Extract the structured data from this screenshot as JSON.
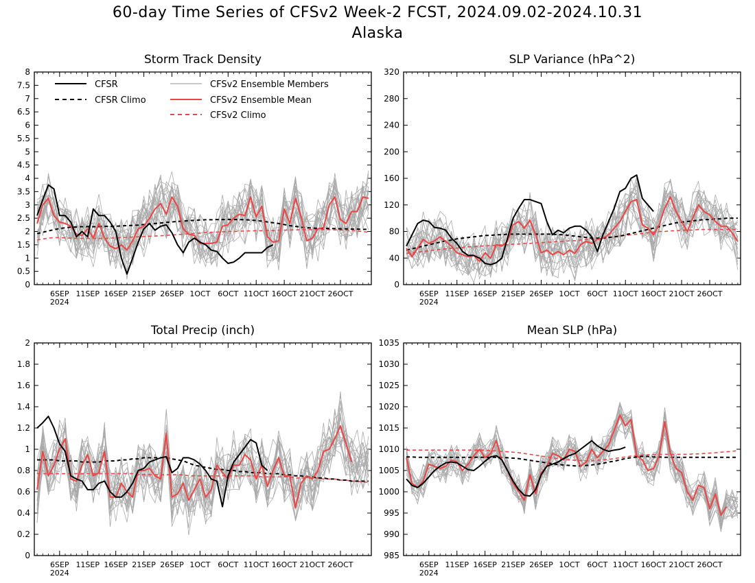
{
  "title": {
    "line1": "60-day Time Series of CFSv2 Week-2 FCST, 2024.09.02-2024.10.31",
    "line2": "Alaska"
  },
  "colors": {
    "cfsr": "#000000",
    "cfsr_climo": "#000000",
    "members": "#a9a9a9",
    "ens_mean": "#ee4444",
    "cfsv2_climo": "#ee4444"
  },
  "legend": {
    "cfsr": "CFSR",
    "cfsr_climo": "CFSR Climo",
    "members": "CFSv2 Ensemble Members",
    "ens_mean": "CFSv2 Ensemble Mean",
    "cfsv2_climo": "CFSv2 Climo"
  },
  "x_ticks": {
    "labels": [
      "6SEP",
      "11SEP",
      "16SEP",
      "21SEP",
      "26SEP",
      "1OCT",
      "6OCT",
      "11OCT",
      "16OCT",
      "21OCT",
      "26OCT"
    ],
    "day_index": [
      4,
      9,
      14,
      19,
      24,
      29,
      34,
      39,
      44,
      49,
      54
    ],
    "year_label": "2024"
  },
  "chart_data": [
    {
      "type": "line",
      "title": "Storm Track Density",
      "x_days": 60,
      "ylim": [
        0,
        8
      ],
      "yticks": [
        "0",
        "0.5",
        "1",
        "1.5",
        "2",
        "2.5",
        "3",
        "3.5",
        "4",
        "4.5",
        "5",
        "5.5",
        "6",
        "6.5",
        "7",
        "7.5",
        "8"
      ],
      "has_legend": true,
      "series": [
        {
          "key": "cfsr",
          "values": [
            2.6,
            3.2,
            3.75,
            3.6,
            2.6,
            2.6,
            2.35,
            1.8,
            2.0,
            1.8,
            2.85,
            2.6,
            2.6,
            2.35,
            2.0,
            1.0,
            0.4,
            1.0,
            1.6,
            2.1,
            2.3,
            2.05,
            2.2,
            2.25,
            1.95,
            1.5,
            1.2,
            1.6,
            1.75,
            1.6,
            1.5,
            1.3,
            1.25,
            1.0,
            0.8,
            0.85,
            1.0,
            1.2,
            1.2,
            1.2,
            1.2,
            1.4,
            1.5
          ]
        },
        {
          "key": "cfsr_climo",
          "values": [
            1.92,
            1.97,
            2.02,
            2.07,
            2.11,
            2.14,
            2.16,
            2.17,
            2.18,
            2.18,
            2.18,
            2.18,
            2.19,
            2.19,
            2.2,
            2.21,
            2.22,
            2.23,
            2.24,
            2.26,
            2.28,
            2.3,
            2.32,
            2.34,
            2.36,
            2.38,
            2.39,
            2.41,
            2.42,
            2.43,
            2.44,
            2.44,
            2.45,
            2.45,
            2.45,
            2.45,
            2.45,
            2.44,
            2.43,
            2.41,
            2.39,
            2.36,
            2.33,
            2.3,
            2.26,
            2.22,
            2.19,
            2.16,
            2.14,
            2.13,
            2.12,
            2.12,
            2.11,
            2.11,
            2.1,
            2.1,
            2.09,
            2.09,
            2.08,
            2.08
          ]
        },
        {
          "key": "cfsv2_climo",
          "values": [
            1.68,
            1.72,
            1.75,
            1.77,
            1.77,
            1.76,
            1.75,
            1.74,
            1.74,
            1.74,
            1.74,
            1.74,
            1.74,
            1.75,
            1.76,
            1.77,
            1.78,
            1.79,
            1.8,
            1.81,
            1.82,
            1.83,
            1.84,
            1.85,
            1.87,
            1.88,
            1.9,
            1.91,
            1.93,
            1.94,
            1.96,
            1.97,
            1.98,
            1.99,
            2.0,
            2.0,
            2.01,
            2.02,
            2.02,
            2.03,
            2.03,
            2.04,
            2.04,
            2.05,
            2.05,
            2.06,
            2.06,
            2.07,
            2.07,
            2.07,
            2.07,
            2.07,
            2.07,
            2.06,
            2.06,
            2.05,
            2.04,
            2.02,
            2.0,
            1.97
          ]
        },
        {
          "key": "ens_mean",
          "values": [
            2.3,
            3.0,
            3.25,
            2.6,
            2.35,
            2.3,
            2.2,
            1.9,
            1.85,
            2.1,
            1.75,
            2.3,
            1.75,
            1.45,
            1.35,
            1.5,
            1.3,
            1.65,
            2.1,
            2.2,
            2.5,
            2.85,
            3.05,
            2.65,
            3.3,
            2.95,
            2.1,
            1.9,
            1.85,
            1.55,
            1.55,
            1.55,
            1.6,
            2.2,
            2.25,
            2.5,
            2.65,
            2.6,
            3.3,
            2.55,
            2.95,
            1.8,
            1.6,
            1.65,
            2.85,
            2.3,
            3.25,
            2.55,
            1.65,
            1.75,
            2.1,
            2.15,
            3.0,
            3.3,
            2.45,
            2.3,
            2.75,
            2.75,
            3.3,
            3.25
          ]
        }
      ],
      "members": {
        "count": 20,
        "spread": 0.9
      }
    },
    {
      "type": "line",
      "title": "SLP Variance (hPa^2)",
      "x_days": 60,
      "ylim": [
        0,
        320
      ],
      "yticks": [
        "0",
        "40",
        "80",
        "120",
        "160",
        "200",
        "240",
        "280",
        "320"
      ],
      "has_legend": false,
      "series": [
        {
          "key": "cfsr",
          "values": [
            58,
            75,
            92,
            97,
            95,
            86,
            85,
            82,
            70,
            62,
            50,
            44,
            44,
            40,
            32,
            30,
            33,
            40,
            70,
            100,
            115,
            128,
            128,
            125,
            122,
            95,
            75,
            82,
            78,
            85,
            88,
            88,
            82,
            72,
            50,
            75,
            95,
            115,
            140,
            145,
            160,
            165,
            130,
            120,
            110
          ]
        },
        {
          "key": "cfsr_climo",
          "values": [
            52,
            54,
            56,
            58,
            60,
            62,
            64,
            66,
            67,
            69,
            70,
            71,
            72,
            73,
            74,
            74,
            75,
            75,
            76,
            76,
            76,
            76,
            76,
            76,
            76,
            76,
            76,
            75,
            75,
            74,
            73,
            72,
            71,
            70,
            70,
            70,
            71,
            72,
            73,
            75,
            77,
            79,
            81,
            83,
            85,
            87,
            89,
            91,
            93,
            94,
            95,
            96,
            97,
            98,
            98,
            99,
            99,
            100,
            100,
            100
          ]
        },
        {
          "key": "cfsv2_climo",
          "values": [
            47,
            48,
            49,
            50,
            51,
            52,
            53,
            54,
            55,
            55,
            56,
            57,
            57,
            58,
            58,
            59,
            59,
            60,
            60,
            61,
            61,
            62,
            62,
            63,
            63,
            64,
            64,
            65,
            65,
            66,
            66,
            67,
            68,
            68,
            69,
            70,
            71,
            72,
            73,
            74,
            75,
            76,
            77,
            78,
            79,
            80,
            80,
            81,
            81,
            82,
            82,
            82,
            83,
            83,
            83,
            83,
            83,
            83,
            83,
            83
          ]
        },
        {
          "key": "ens_mean",
          "values": [
            55,
            42,
            55,
            68,
            62,
            66,
            72,
            65,
            58,
            48,
            45,
            42,
            44,
            35,
            48,
            40,
            60,
            58,
            65,
            90,
            95,
            85,
            97,
            75,
            48,
            52,
            45,
            50,
            45,
            52,
            47,
            60,
            65,
            62,
            68,
            70,
            75,
            85,
            95,
            110,
            125,
            128,
            90,
            85,
            75,
            90,
            115,
            132,
            110,
            95,
            80,
            100,
            120,
            110,
            105,
            95,
            88,
            88,
            78,
            65
          ]
        }
      ],
      "members": {
        "count": 20,
        "spread": 32
      }
    },
    {
      "type": "line",
      "title": "Total Precip (inch)",
      "x_days": 60,
      "ylim": [
        0,
        2
      ],
      "yticks": [
        "0",
        "0.2",
        "0.4",
        "0.6",
        "0.8",
        "1",
        "1.2",
        "1.4",
        "1.6",
        "1.8",
        "2"
      ],
      "has_legend": false,
      "series": [
        {
          "key": "cfsr",
          "values": [
            1.2,
            1.25,
            1.31,
            1.2,
            1.05,
            0.98,
            0.75,
            0.72,
            0.7,
            0.62,
            0.62,
            0.68,
            0.7,
            0.6,
            0.55,
            0.55,
            0.6,
            0.68,
            0.8,
            0.82,
            0.88,
            0.9,
            0.92,
            0.93,
            0.78,
            0.82,
            0.92,
            0.92,
            0.9,
            0.86,
            0.8,
            0.72,
            0.7,
            0.46,
            0.75,
            0.88,
            0.95,
            1.02,
            1.09,
            1.06,
            0.85,
            0.8
          ]
        },
        {
          "key": "cfsr_climo",
          "values": [
            0.9,
            0.9,
            0.9,
            0.9,
            0.89,
            0.89,
            0.89,
            0.89,
            0.88,
            0.88,
            0.88,
            0.88,
            0.89,
            0.89,
            0.89,
            0.9,
            0.9,
            0.91,
            0.91,
            0.92,
            0.92,
            0.92,
            0.92,
            0.92,
            0.91,
            0.9,
            0.89,
            0.87,
            0.85,
            0.84,
            0.83,
            0.82,
            0.81,
            0.81,
            0.8,
            0.8,
            0.79,
            0.79,
            0.78,
            0.78,
            0.78,
            0.77,
            0.77,
            0.77,
            0.76,
            0.76,
            0.75,
            0.75,
            0.74,
            0.74,
            0.73,
            0.73,
            0.72,
            0.72,
            0.71,
            0.71,
            0.7,
            0.7,
            0.7,
            0.7
          ]
        },
        {
          "key": "cfsv2_climo",
          "values": [
            0.77,
            0.77,
            0.77,
            0.77,
            0.77,
            0.77,
            0.77,
            0.77,
            0.77,
            0.77,
            0.77,
            0.77,
            0.77,
            0.77,
            0.77,
            0.77,
            0.77,
            0.77,
            0.76,
            0.76,
            0.76,
            0.76,
            0.76,
            0.76,
            0.76,
            0.76,
            0.76,
            0.75,
            0.75,
            0.75,
            0.75,
            0.75,
            0.75,
            0.75,
            0.75,
            0.75,
            0.75,
            0.75,
            0.75,
            0.75,
            0.74,
            0.74,
            0.74,
            0.74,
            0.74,
            0.74,
            0.73,
            0.73,
            0.73,
            0.73,
            0.73,
            0.72,
            0.72,
            0.72,
            0.71,
            0.71,
            0.7,
            0.7,
            0.69,
            0.69
          ]
        },
        {
          "key": "ens_mean",
          "values": [
            0.62,
            0.98,
            0.75,
            0.85,
            1.0,
            1.1,
            0.72,
            0.7,
            0.85,
            0.95,
            0.75,
            0.78,
            0.98,
            0.55,
            0.55,
            0.68,
            0.6,
            0.55,
            0.8,
            0.8,
            0.82,
            0.75,
            0.72,
            1.15,
            0.55,
            0.58,
            0.68,
            0.52,
            0.62,
            0.72,
            0.55,
            0.62,
            0.85,
            0.78,
            0.72,
            0.85,
            0.85,
            0.95,
            0.9,
            0.72,
            0.85,
            0.65,
            0.8,
            0.92,
            0.75,
            0.75,
            0.45,
            0.68,
            0.75,
            0.72,
            0.8,
            0.98,
            1.0,
            1.1,
            1.22,
            1.05,
            0.88
          ]
        }
      ],
      "members": {
        "count": 20,
        "spread": 0.24
      }
    },
    {
      "type": "line",
      "title": "Mean SLP (hPa)",
      "x_days": 60,
      "ylim": [
        985,
        1035
      ],
      "yticks": [
        "985",
        "990",
        "995",
        "1000",
        "1005",
        "1010",
        "1015",
        "1020",
        "1025",
        "1030",
        "1035"
      ],
      "has_legend": false,
      "series": [
        {
          "key": "cfsr",
          "values": [
            1003.0,
            1001.5,
            1001.0,
            1002.0,
            1003.5,
            1005.0,
            1006.0,
            1006.8,
            1007.0,
            1006.8,
            1006.0,
            1005.2,
            1005.0,
            1006.0,
            1007.2,
            1008.2,
            1008.5,
            1007.5,
            1005.0,
            1002.5,
            1000.5,
            999.2,
            999.0,
            1000.5,
            1004.0,
            1006.0,
            1006.5,
            1007.0,
            1007.8,
            1008.5,
            1009.0,
            1010.0,
            1011.0,
            1012.0,
            1010.8,
            1010.0,
            1009.5,
            1009.8,
            1010.0,
            1010.5
          ]
        },
        {
          "key": "cfsr_climo",
          "values": [
            1008.2,
            1008.2,
            1008.1,
            1008.1,
            1008.1,
            1008.1,
            1008.1,
            1008.1,
            1008.1,
            1008.1,
            1008.1,
            1008.1,
            1008.1,
            1008.1,
            1008.1,
            1008.1,
            1008.1,
            1008.1,
            1008.0,
            1007.9,
            1007.8,
            1007.6,
            1007.4,
            1007.2,
            1007.0,
            1006.8,
            1006.6,
            1006.4,
            1006.3,
            1006.2,
            1006.1,
            1006.1,
            1006.2,
            1006.3,
            1006.5,
            1006.7,
            1007.0,
            1007.2,
            1007.5,
            1007.8,
            1008.0,
            1008.2,
            1008.3,
            1008.3,
            1008.2,
            1008.2,
            1008.1,
            1008.1,
            1008.1,
            1008.1,
            1008.1,
            1008.1,
            1008.1,
            1008.1,
            1008.1,
            1008.1,
            1008.1,
            1008.1,
            1008.1,
            1008.1
          ]
        },
        {
          "key": "cfsv2_climo",
          "values": [
            1009.8,
            1009.8,
            1009.8,
            1009.8,
            1009.8,
            1009.8,
            1009.8,
            1009.8,
            1009.8,
            1009.8,
            1009.8,
            1009.8,
            1009.8,
            1009.8,
            1009.8,
            1009.7,
            1009.6,
            1009.5,
            1009.4,
            1009.3,
            1009.2,
            1009.0,
            1008.8,
            1008.6,
            1008.4,
            1008.2,
            1008.0,
            1007.8,
            1007.6,
            1007.5,
            1007.4,
            1007.3,
            1007.3,
            1007.3,
            1007.4,
            1007.5,
            1007.6,
            1007.8,
            1008.0,
            1008.2,
            1008.4,
            1008.5,
            1008.6,
            1008.7,
            1008.7,
            1008.8,
            1008.8,
            1008.8,
            1008.8,
            1008.8,
            1008.8,
            1008.9,
            1008.9,
            1009.0,
            1009.1,
            1009.2,
            1009.3,
            1009.4,
            1009.5,
            1009.7
          ]
        },
        {
          "key": "ens_mean",
          "values": [
            1008.0,
            1002.0,
            1001.0,
            1002.5,
            1006.5,
            1006.0,
            1005.5,
            1006.0,
            1007.5,
            1007.0,
            1005.0,
            1006.5,
            1008.5,
            1010.0,
            1008.0,
            1009.0,
            1012.0,
            1007.5,
            1005.0,
            1002.0,
            1000.0,
            998.0,
            1004.0,
            999.5,
            1004.5,
            1006.0,
            1009.0,
            1008.5,
            1007.5,
            1010.0,
            1009.5,
            1006.0,
            1007.0,
            1010.0,
            1008.0,
            1009.5,
            1011.0,
            1014.5,
            1018.0,
            1015.5,
            1017.0,
            1008.5,
            1007.5,
            1005.0,
            1005.5,
            1008.5,
            1016.5,
            1009.0,
            1005.5,
            1004.5,
            1000.0,
            998.0,
            1001.5,
            1001.0,
            996.0,
            999.5,
            994.5,
            996.5
          ]
        }
      ],
      "members": {
        "count": 20,
        "spread": 3.2
      }
    }
  ]
}
